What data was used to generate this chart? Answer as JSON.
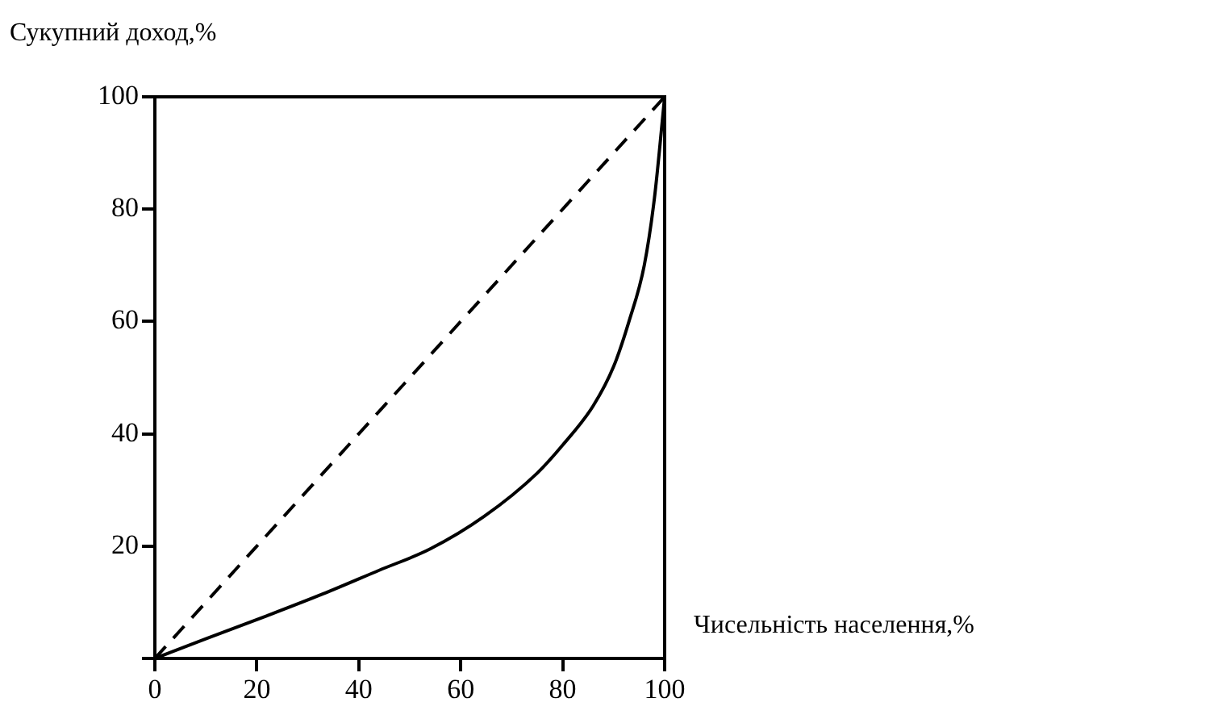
{
  "chart_data": {
    "type": "line",
    "xlabel": "Чисельність населення,%",
    "ylabel": "Сукупний доход,%",
    "xlim": [
      0,
      100
    ],
    "ylim": [
      0,
      100
    ],
    "xticks": [
      0,
      20,
      40,
      60,
      80,
      100
    ],
    "yticks": [
      {
        "value": 0,
        "label": null
      },
      20,
      40,
      60,
      80,
      100
    ],
    "grid": false,
    "legend": false,
    "marker": "none",
    "series": [
      {
        "color": "#000000",
        "line_style": "dashed",
        "x": [
          0,
          100
        ],
        "values": [
          0,
          100
        ]
      },
      {
        "color": "#000000",
        "line_style": "solid",
        "x": [
          0,
          10,
          22,
          33,
          44,
          54,
          64.6,
          75,
          80,
          86,
          90,
          93,
          96,
          98,
          100
        ],
        "values": [
          0,
          3.5,
          7.6,
          11.5,
          15.7,
          19.5,
          25.3,
          33,
          38,
          45,
          52,
          60,
          70,
          82,
          100
        ]
      }
    ]
  }
}
